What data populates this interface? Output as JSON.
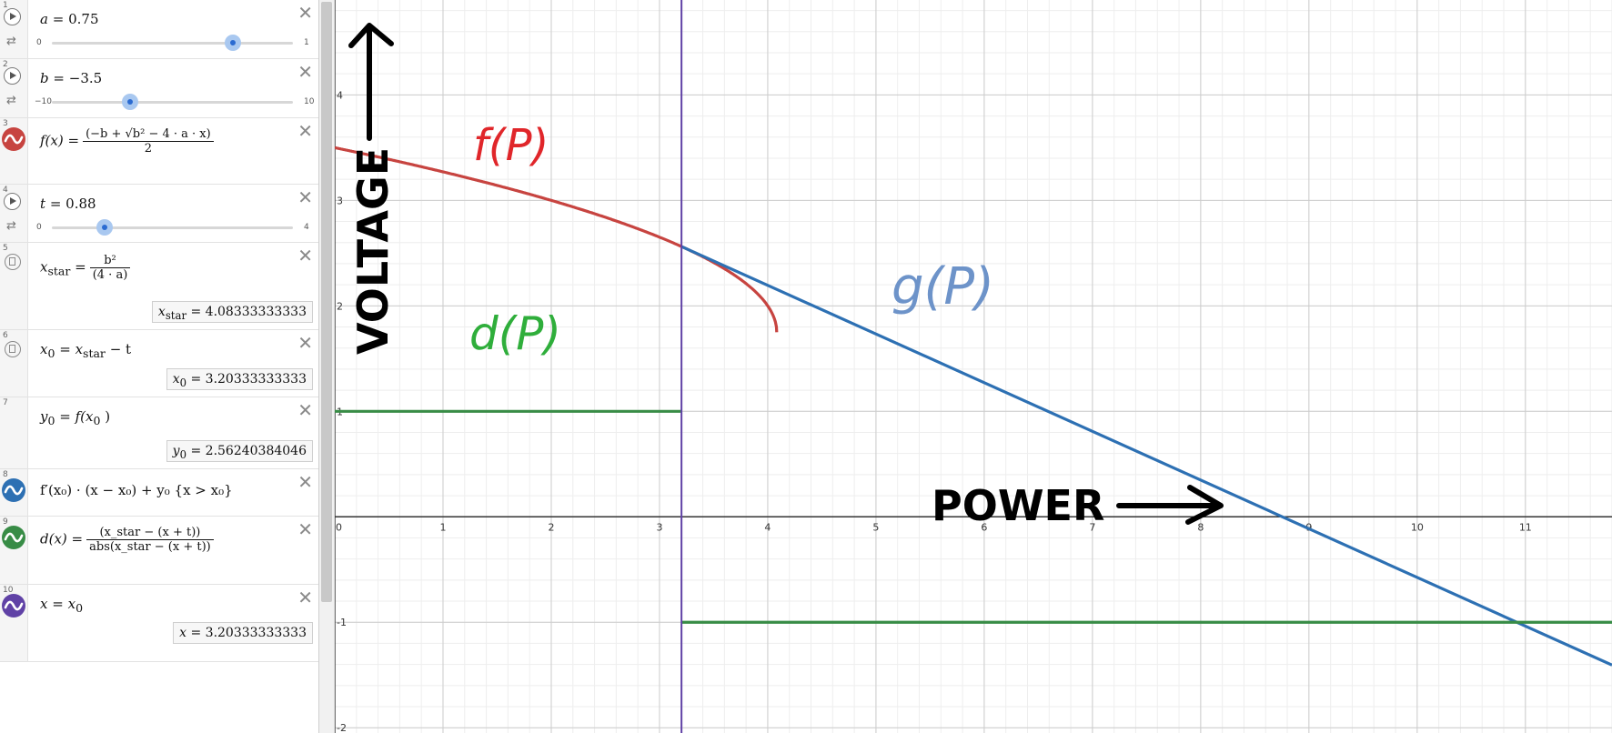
{
  "expressions": [
    {
      "num": "1",
      "kind": "slider",
      "latex_lhs": "a",
      "eq": "=",
      "value": "0.75",
      "min": "0",
      "max": "1",
      "fraction": 0.75
    },
    {
      "num": "2",
      "kind": "slider",
      "latex_lhs": "b",
      "eq": "=",
      "value": "−3.5",
      "min": "−10",
      "max": "10",
      "fraction": 0.325
    },
    {
      "num": "3",
      "kind": "function",
      "color": "#c74440",
      "lhs": "f(x)",
      "eq": "=",
      "numer": "(−b + √b² − 4 · a · x)",
      "denom": "2"
    },
    {
      "num": "4",
      "kind": "slider",
      "latex_lhs": "t",
      "eq": "=",
      "value": "0.88",
      "min": "0",
      "max": "4",
      "fraction": 0.22
    },
    {
      "num": "5",
      "kind": "value",
      "lhs": "x",
      "lhs_sub": "star",
      "eq": "=",
      "numer": "b²",
      "denom": "(4 · a)",
      "eval_lhs": "x",
      "eval_sub": "star",
      "eval_eq": "=",
      "eval_value": "4.08333333333"
    },
    {
      "num": "6",
      "kind": "value",
      "lhs": "x",
      "lhs_sub": "0",
      "eq": "=",
      "rhs": "x",
      "rhs_sub": "star",
      "rhs_tail": "− t",
      "eval_lhs": "x",
      "eval_sub": "0",
      "eval_eq": "=",
      "eval_value": "3.20333333333"
    },
    {
      "num": "7",
      "kind": "value",
      "lhs": "y",
      "lhs_sub": "0",
      "eq": "=",
      "rhs": "f(x",
      "rhs_sub": "0",
      "rhs_tail": ")",
      "eval_lhs": "y",
      "eval_sub": "0",
      "eval_eq": "=",
      "eval_value": "2.56240384046"
    },
    {
      "num": "8",
      "kind": "function",
      "color": "#2d70b3",
      "text": "f′(x₀) · (x − x₀) + y₀ {x > x₀}"
    },
    {
      "num": "9",
      "kind": "function",
      "color": "#388c46",
      "lhs": "d(x)",
      "eq": "=",
      "numer": "(x_star − (x + t))",
      "denom": "abs(x_star − (x + t))"
    },
    {
      "num": "10",
      "kind": "function",
      "color": "#6042a6",
      "lhs": "x",
      "eq": "=",
      "rhs": "x",
      "rhs_sub": "0",
      "eval_lhs": "x",
      "eval_sub": "",
      "eval_eq": "=",
      "eval_value": "3.20333333333"
    }
  ],
  "graph": {
    "xlim": [
      0,
      11.8
    ],
    "ylim": [
      -2.05,
      4.9
    ],
    "x_ticks": [
      "0",
      "1",
      "2",
      "3",
      "4",
      "5",
      "6",
      "7",
      "8",
      "9",
      "10",
      "11"
    ],
    "y_ticks": [
      "-2",
      "-1",
      "1",
      "2",
      "3",
      "4"
    ],
    "x_tick_values": [
      0,
      1,
      2,
      3,
      4,
      5,
      6,
      7,
      8,
      9,
      10,
      11
    ],
    "y_tick_values": [
      -2,
      -1,
      1,
      2,
      3,
      4
    ],
    "colors": {
      "f": "#c74440",
      "g": "#2d70b3",
      "d": "#388c46",
      "vline": "#6042a6"
    },
    "params": {
      "a": 0.75,
      "b": -3.5,
      "t": 0.88
    },
    "annotations": {
      "voltage": "VOLTAGE",
      "power": "POWER",
      "f_label": "f(P)",
      "g_label": "g(P)",
      "d_label": "d(P)"
    }
  }
}
